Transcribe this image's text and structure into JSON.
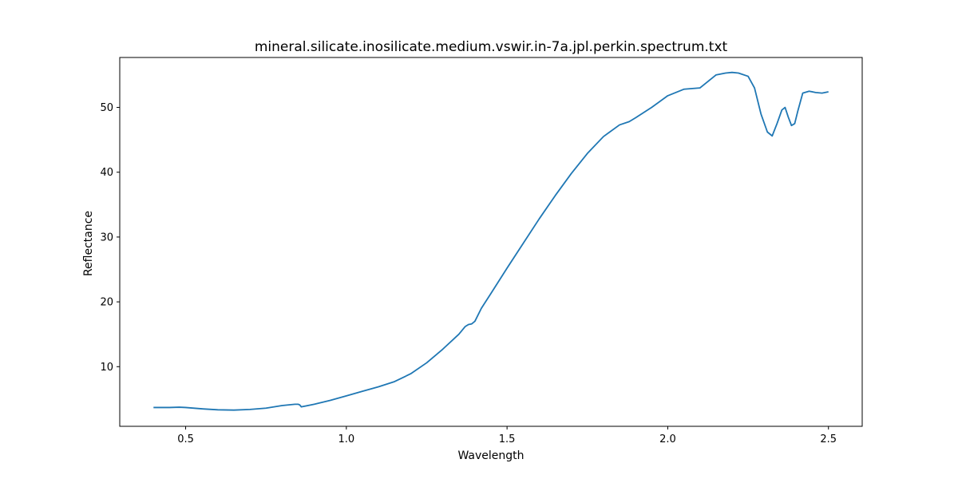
{
  "chart_data": {
    "type": "line",
    "title": "mineral.silicate.inosilicate.medium.vswir.in-7a.jpl.perkin.spectrum.txt",
    "xlabel": "Wavelength",
    "ylabel": "Reflectance",
    "xlim": [
      0.295,
      2.605
    ],
    "ylim": [
      0.8,
      57.7
    ],
    "xticks": [
      0.5,
      1.0,
      1.5,
      2.0,
      2.5
    ],
    "xtick_labels": [
      "0.5",
      "1.0",
      "1.5",
      "2.0",
      "2.5"
    ],
    "yticks": [
      10,
      20,
      30,
      40,
      50
    ],
    "ytick_labels": [
      "10",
      "20",
      "30",
      "40",
      "50"
    ],
    "grid": false,
    "line_color": "#1f77b4",
    "series": [
      {
        "x": [
          0.4,
          0.45,
          0.48,
          0.5,
          0.55,
          0.6,
          0.65,
          0.7,
          0.75,
          0.8,
          0.84,
          0.85,
          0.855,
          0.86,
          0.9,
          0.95,
          1.0,
          1.05,
          1.1,
          1.15,
          1.2,
          1.25,
          1.3,
          1.35,
          1.37,
          1.38,
          1.39,
          1.4,
          1.42,
          1.45,
          1.5,
          1.55,
          1.6,
          1.65,
          1.7,
          1.75,
          1.8,
          1.85,
          1.88,
          1.9,
          1.95,
          2.0,
          2.05,
          2.1,
          2.12,
          2.15,
          2.18,
          2.2,
          2.22,
          2.25,
          2.27,
          2.29,
          2.31,
          2.325,
          2.34,
          2.355,
          2.365,
          2.375,
          2.385,
          2.395,
          2.405,
          2.42,
          2.44,
          2.46,
          2.48,
          2.5
        ],
        "y": [
          3.7,
          3.7,
          3.75,
          3.7,
          3.5,
          3.35,
          3.3,
          3.4,
          3.6,
          4.0,
          4.2,
          4.2,
          4.1,
          3.8,
          4.2,
          4.8,
          5.5,
          6.2,
          6.9,
          7.7,
          8.9,
          10.6,
          12.7,
          15.0,
          16.2,
          16.5,
          16.6,
          17.0,
          19.0,
          21.3,
          25.2,
          29.0,
          32.8,
          36.4,
          39.8,
          42.9,
          45.5,
          47.3,
          47.8,
          48.4,
          50.0,
          51.8,
          52.8,
          53.0,
          53.8,
          55.0,
          55.3,
          55.4,
          55.3,
          54.8,
          53.0,
          49.0,
          46.2,
          45.6,
          47.5,
          49.6,
          50.0,
          48.5,
          47.2,
          47.5,
          49.5,
          52.2,
          52.5,
          52.3,
          52.2,
          52.4
        ]
      }
    ]
  }
}
